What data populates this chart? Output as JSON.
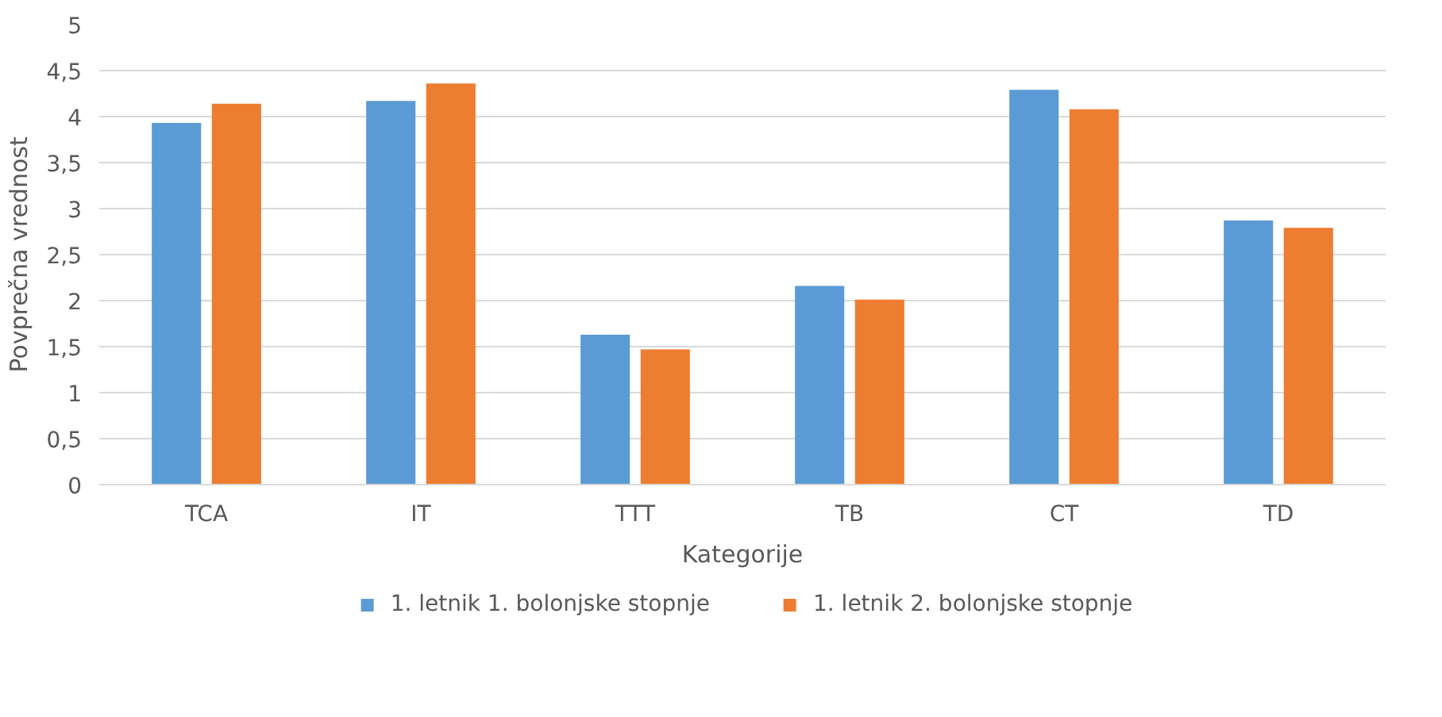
{
  "chart_data": {
    "type": "bar",
    "xlabel": "Kategorije",
    "ylabel": "Povprečna vrednost",
    "categories": [
      "TCA",
      "IT",
      "TTT",
      "TB",
      "CT",
      "TD"
    ],
    "series": [
      {
        "name": "1. letnik 1. bolonjske stopnje",
        "color": "#5b9bd5",
        "values": [
          3.93,
          4.17,
          1.63,
          2.16,
          4.29,
          2.87
        ]
      },
      {
        "name": "1. letnik 2. bolonjske stopnje",
        "color": "#ed7d31",
        "values": [
          4.14,
          4.36,
          1.47,
          2.01,
          4.08,
          2.79
        ]
      }
    ],
    "ylim": [
      0,
      5
    ],
    "yticks": [
      0,
      {
        "value": 0.5,
        "label": "0,5"
      },
      1,
      {
        "value": 1.5,
        "label": "1,5"
      },
      2,
      {
        "value": 2.5,
        "label": "2,5"
      },
      3,
      {
        "value": 3.5,
        "label": "3,5"
      },
      4,
      {
        "value": 4.5,
        "label": "4,5"
      },
      5
    ],
    "grid": "y",
    "legend": "bottom"
  }
}
